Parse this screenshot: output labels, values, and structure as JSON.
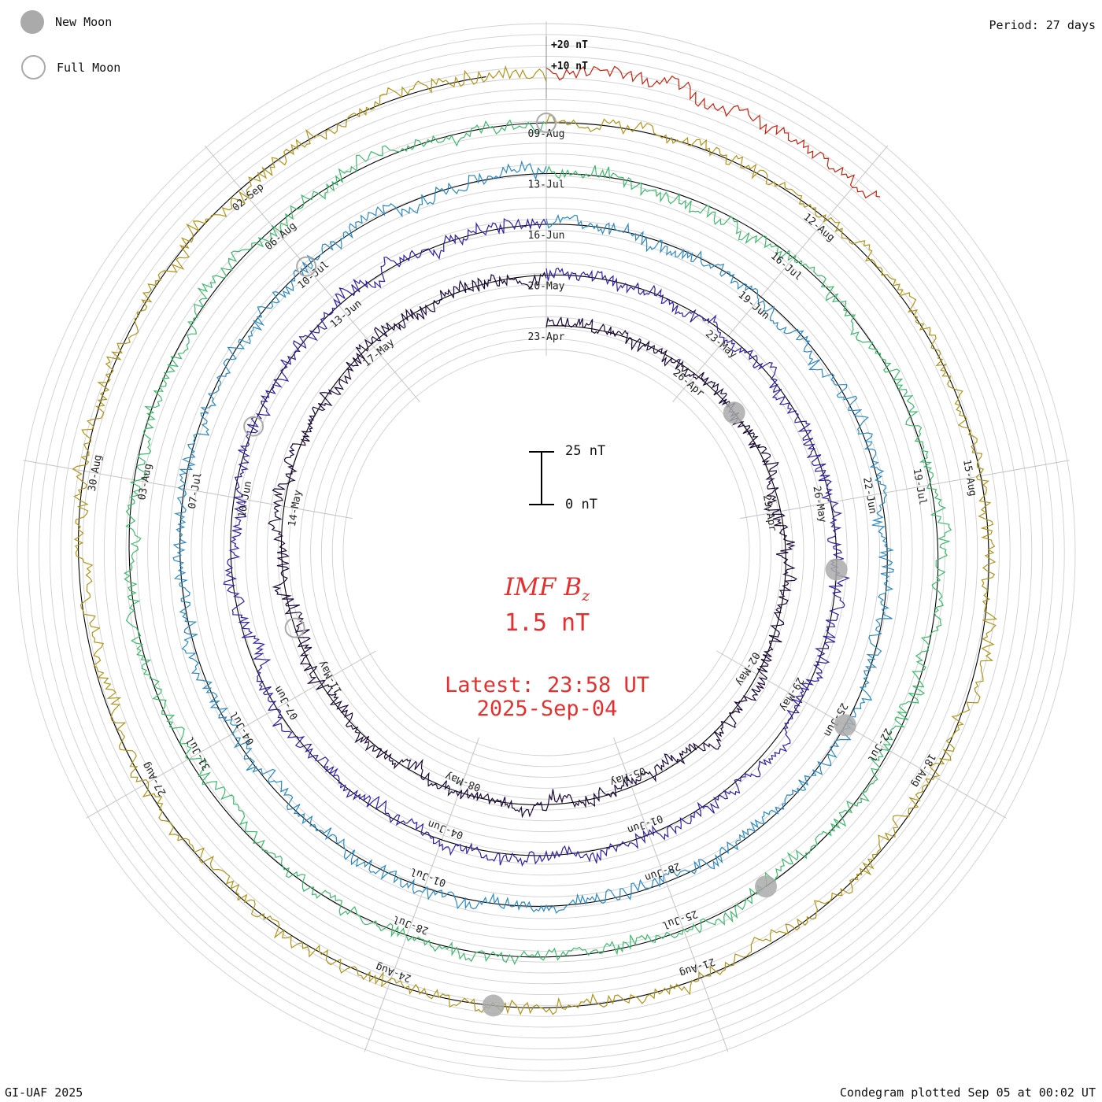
{
  "header": {
    "period": "Period: 27 days"
  },
  "legend": {
    "new_moon": "New Moon",
    "full_moon": "Full Moon"
  },
  "center": {
    "parameter": "IMF B",
    "subscript": "z",
    "value": "1.5 nT",
    "latest_time": "Latest: 23:58 UT",
    "latest_date": "2025-Sep-04"
  },
  "scale_bar": {
    "top_label": "25 nT",
    "bottom_label": "0 nT"
  },
  "footer": {
    "credit": "GI-UAF 2025",
    "plotted": "Condegram plotted Sep 05 at 00:02 UT"
  },
  "chart_data": {
    "type": "line",
    "ring_scale_labels": [
      "+20 nT",
      "+10 nT"
    ],
    "period_days": 27,
    "series": [
      {
        "color": "#1a0838",
        "start": "2025-04-23",
        "date_labels": [
          "23-Apr",
          "26-Apr",
          "29-Apr",
          "02-May",
          "05-May",
          "08-May",
          "11-May",
          "14-May",
          "17-May"
        ]
      },
      {
        "color": "#2d20a8",
        "start": "2025-05-20",
        "date_labels": [
          "20-May",
          "23-May",
          "26-May",
          "29-May",
          "01-Jun",
          "04-Jun",
          "07-Jun",
          "10-Jun",
          "13-Jun"
        ]
      },
      {
        "color": "#2a8ac4",
        "start": "2025-06-16",
        "date_labels": [
          "16-Jun",
          "19-Jun",
          "22-Jun",
          "25-Jun",
          "28-Jun",
          "01-Jul",
          "04-Jul",
          "07-Jul",
          "10-Jul"
        ]
      },
      {
        "color": "#3cba6c",
        "start": "2025-07-13",
        "date_labels": [
          "13-Jul",
          "16-Jul",
          "19-Jul",
          "22-Jul",
          "25-Jul",
          "28-Jul",
          "31-Jul",
          "03-Aug",
          "06-Aug"
        ]
      },
      {
        "color": "#b09418",
        "start": "2025-08-09",
        "date_labels": [
          "09-Aug",
          "12-Aug",
          "15-Aug",
          "18-Aug",
          "21-Aug",
          "24-Aug",
          "27-Aug",
          "30-Aug",
          "02-Sep"
        ]
      },
      {
        "color": "#c8200c",
        "start": "2025-09-05",
        "date_labels": []
      }
    ],
    "moon_phases": {
      "new_moon": [
        "2025-04-27",
        "2025-05-27",
        "2025-06-25",
        "2025-07-24",
        "2025-08-23"
      ],
      "full_moon": [
        "2025-05-12",
        "2025-06-11",
        "2025-07-10",
        "2025-08-09"
      ]
    }
  }
}
